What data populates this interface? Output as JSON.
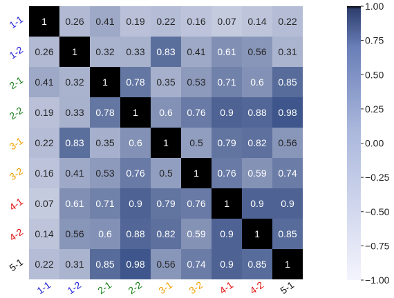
{
  "chart_data": {
    "type": "heatmap",
    "title": "",
    "xlabel": "",
    "ylabel": "",
    "labels": [
      "1-1",
      "1-2",
      "2-1",
      "2-2",
      "3-1",
      "3-2",
      "4-1",
      "4-2",
      "5-1"
    ],
    "label_colors": [
      "#1f1fd6",
      "#1f1fd6",
      "#1a7f1a",
      "#1a7f1a",
      "#f0a000",
      "#f0a000",
      "#e01010",
      "#e01010",
      "#111111"
    ],
    "matrix": [
      [
        1,
        0.26,
        0.41,
        0.19,
        0.22,
        0.16,
        0.07,
        0.14,
        0.22
      ],
      [
        0.26,
        1,
        0.32,
        0.33,
        0.83,
        0.41,
        0.61,
        0.56,
        0.31
      ],
      [
        0.41,
        0.32,
        1,
        0.78,
        0.35,
        0.53,
        0.71,
        0.6,
        0.85
      ],
      [
        0.19,
        0.33,
        0.78,
        1,
        0.6,
        0.76,
        0.9,
        0.88,
        0.98
      ],
      [
        0.22,
        0.83,
        0.35,
        0.6,
        1,
        0.5,
        0.79,
        0.82,
        0.56
      ],
      [
        0.16,
        0.41,
        0.53,
        0.76,
        0.5,
        1,
        0.76,
        0.59,
        0.74
      ],
      [
        0.07,
        0.61,
        0.71,
        0.9,
        0.79,
        0.76,
        1,
        0.9,
        0.9
      ],
      [
        0.14,
        0.56,
        0.6,
        0.88,
        0.82,
        0.59,
        0.9,
        1,
        0.85
      ],
      [
        0.22,
        0.31,
        0.85,
        0.98,
        0.56,
        0.74,
        0.9,
        0.85,
        1
      ]
    ],
    "diagonal_color": "#000000",
    "colorscale": {
      "min": -1.0,
      "max": 1.0,
      "low_color": "#f4f4fd",
      "high_color": "#3a5288"
    },
    "colorbar_ticks": [
      "1.00",
      "0.75",
      "0.50",
      "0.25",
      "0.00",
      "−0.25",
      "−0.50",
      "−0.75",
      "−1.00"
    ],
    "colorbar_tick_values": [
      1.0,
      0.75,
      0.5,
      0.25,
      0.0,
      -0.25,
      -0.5,
      -0.75,
      -1.0
    ],
    "legend": "right"
  }
}
